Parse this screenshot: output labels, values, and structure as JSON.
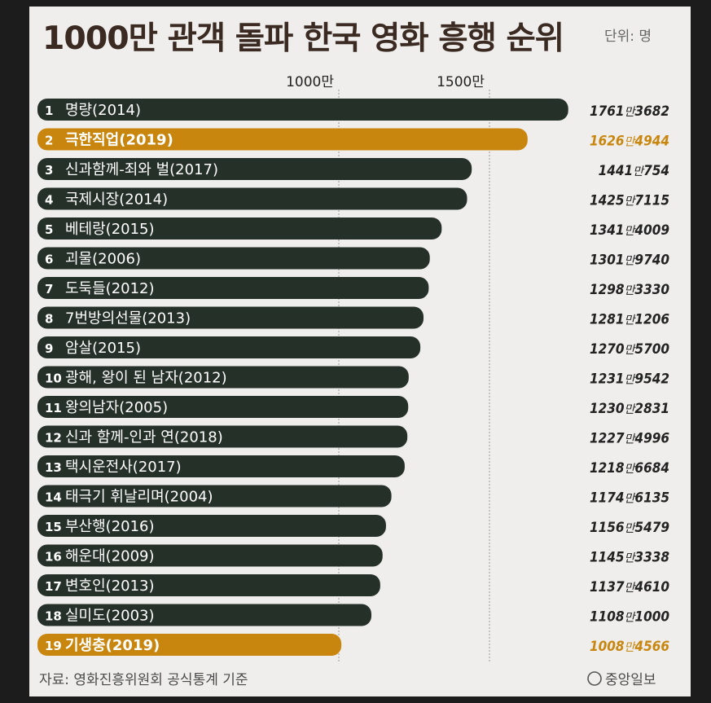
{
  "title": "1000만 관객 돌파 한국 영화 흥행 순위",
  "unit_label": "단위: 명",
  "source": "자료: 영화진흥위원회 공식통계 기준",
  "publisher": "중앙일보",
  "colors": {
    "background": "#efeeec",
    "bar_default": "#253029",
    "bar_highlight": "#c8860f",
    "title": "#3a2a22",
    "grid": "#9a9a9a"
  },
  "chart_data": {
    "type": "bar",
    "orientation": "horizontal",
    "xlim": [
      0,
      1800
    ],
    "gridlines": [
      {
        "value": 1000,
        "label": "1000만"
      },
      {
        "value": 1500,
        "label": "1500만"
      }
    ],
    "categories": [
      {
        "rank": "1",
        "name": "명량(2014)",
        "value": 1761.3682,
        "value_main": "1761",
        "value_man": "만",
        "value_rest": "3682",
        "highlight": false
      },
      {
        "rank": "2",
        "name": "극한직업(2019)",
        "value": 1626.4944,
        "value_main": "1626",
        "value_man": "만",
        "value_rest": "4944",
        "highlight": true
      },
      {
        "rank": "3",
        "name": "신과함께-죄와 벌(2017)",
        "value": 1441.0754,
        "value_main": "1441",
        "value_man": "만",
        "value_rest": "754",
        "highlight": false
      },
      {
        "rank": "4",
        "name": "국제시장(2014)",
        "value": 1425.7115,
        "value_main": "1425",
        "value_man": "만",
        "value_rest": "7115",
        "highlight": false
      },
      {
        "rank": "5",
        "name": "베테랑(2015)",
        "value": 1341.4009,
        "value_main": "1341",
        "value_man": "만",
        "value_rest": "4009",
        "highlight": false
      },
      {
        "rank": "6",
        "name": "괴물(2006)",
        "value": 1301.974,
        "value_main": "1301",
        "value_man": "만",
        "value_rest": "9740",
        "highlight": false
      },
      {
        "rank": "7",
        "name": "도둑들(2012)",
        "value": 1298.333,
        "value_main": "1298",
        "value_man": "만",
        "value_rest": "3330",
        "highlight": false
      },
      {
        "rank": "8",
        "name": "7번방의선물(2013)",
        "value": 1281.1206,
        "value_main": "1281",
        "value_man": "만",
        "value_rest": "1206",
        "highlight": false
      },
      {
        "rank": "9",
        "name": "암살(2015)",
        "value": 1270.57,
        "value_main": "1270",
        "value_man": "만",
        "value_rest": "5700",
        "highlight": false
      },
      {
        "rank": "10",
        "name": "광해, 왕이 된 남자(2012)",
        "value": 1231.9542,
        "value_main": "1231",
        "value_man": "만",
        "value_rest": "9542",
        "highlight": false
      },
      {
        "rank": "11",
        "name": "왕의남자(2005)",
        "value": 1230.2831,
        "value_main": "1230",
        "value_man": "만",
        "value_rest": "2831",
        "highlight": false
      },
      {
        "rank": "12",
        "name": "신과 함께-인과 연(2018)",
        "value": 1227.4996,
        "value_main": "1227",
        "value_man": "만",
        "value_rest": "4996",
        "highlight": false
      },
      {
        "rank": "13",
        "name": "택시운전사(2017)",
        "value": 1218.6684,
        "value_main": "1218",
        "value_man": "만",
        "value_rest": "6684",
        "highlight": false
      },
      {
        "rank": "14",
        "name": "태극기 휘날리며(2004)",
        "value": 1174.6135,
        "value_main": "1174",
        "value_man": "만",
        "value_rest": "6135",
        "highlight": false
      },
      {
        "rank": "15",
        "name": "부산행(2016)",
        "value": 1156.5479,
        "value_main": "1156",
        "value_man": "만",
        "value_rest": "5479",
        "highlight": false
      },
      {
        "rank": "16",
        "name": "해운대(2009)",
        "value": 1145.3338,
        "value_main": "1145",
        "value_man": "만",
        "value_rest": "3338",
        "highlight": false
      },
      {
        "rank": "17",
        "name": "변호인(2013)",
        "value": 1137.461,
        "value_main": "1137",
        "value_man": "만",
        "value_rest": "4610",
        "highlight": false
      },
      {
        "rank": "18",
        "name": "실미도(2003)",
        "value": 1108.1,
        "value_main": "1108",
        "value_man": "만",
        "value_rest": "1000",
        "highlight": false
      },
      {
        "rank": "19",
        "name": "기생충(2019)",
        "value": 1008.4566,
        "value_main": "1008",
        "value_man": "만",
        "value_rest": "4566",
        "highlight": true
      }
    ]
  }
}
